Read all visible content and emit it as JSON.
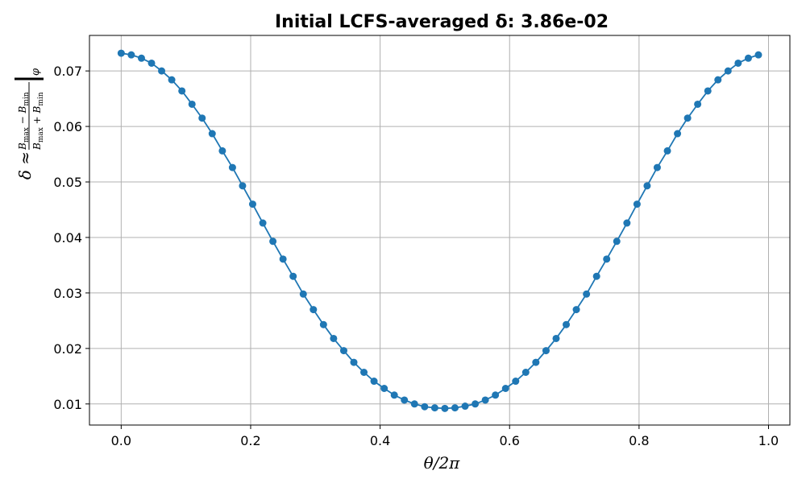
{
  "chart_data": {
    "type": "line",
    "title": "Initial LCFS-averaged δ: 3.86e-02",
    "xlabel": "θ/2π",
    "ylabel": "δ ≈ (B_max − B_min)/(B_max + B_min) |_φ",
    "xlim": [
      -0.049,
      1.033
    ],
    "ylim": [
      0.0062,
      0.0764
    ],
    "xticks": [
      0.0,
      0.2,
      0.4,
      0.6,
      0.8,
      1.0
    ],
    "xtick_labels": [
      "0.0",
      "0.2",
      "0.4",
      "0.6",
      "0.8",
      "1.0"
    ],
    "yticks": [
      0.01,
      0.02,
      0.03,
      0.04,
      0.05,
      0.06,
      0.07
    ],
    "ytick_labels": [
      "0.01",
      "0.02",
      "0.03",
      "0.04",
      "0.05",
      "0.06",
      "0.07"
    ],
    "grid": true,
    "color": "#1f77b4",
    "series": [
      {
        "x": [
          0.0,
          0.0156,
          0.0313,
          0.0469,
          0.0625,
          0.0781,
          0.0938,
          0.1094,
          0.125,
          0.1406,
          0.1563,
          0.1719,
          0.1875,
          0.2031,
          0.2188,
          0.2344,
          0.25,
          0.2656,
          0.2813,
          0.2969,
          0.3125,
          0.3281,
          0.3438,
          0.3594,
          0.375,
          0.3906,
          0.4063,
          0.4219,
          0.4375,
          0.4531,
          0.4688,
          0.4844,
          0.5,
          0.5156,
          0.5313,
          0.5469,
          0.5625,
          0.5781,
          0.5938,
          0.6094,
          0.625,
          0.6406,
          0.6563,
          0.6719,
          0.6875,
          0.7031,
          0.7188,
          0.7344,
          0.75,
          0.7656,
          0.7813,
          0.7969,
          0.8125,
          0.8281,
          0.8438,
          0.8594,
          0.875,
          0.8906,
          0.9063,
          0.9219,
          0.9375,
          0.9531,
          0.9688,
          0.9844
        ],
        "y": [
          0.0732,
          0.0729,
          0.0723,
          0.0714,
          0.07,
          0.0684,
          0.0664,
          0.064,
          0.0615,
          0.0587,
          0.0556,
          0.0526,
          0.0493,
          0.046,
          0.0426,
          0.0393,
          0.0361,
          0.033,
          0.0298,
          0.027,
          0.0243,
          0.0218,
          0.0196,
          0.0175,
          0.0157,
          0.0141,
          0.0128,
          0.0116,
          0.0107,
          0.01,
          0.0095,
          0.0093,
          0.0092,
          0.0093,
          0.0096,
          0.01,
          0.0107,
          0.0116,
          0.0128,
          0.0141,
          0.0157,
          0.0175,
          0.0196,
          0.0218,
          0.0243,
          0.027,
          0.0298,
          0.033,
          0.0361,
          0.0393,
          0.0426,
          0.046,
          0.0493,
          0.0526,
          0.0556,
          0.0587,
          0.0615,
          0.064,
          0.0664,
          0.0684,
          0.07,
          0.0714,
          0.0723,
          0.0729
        ]
      }
    ]
  }
}
